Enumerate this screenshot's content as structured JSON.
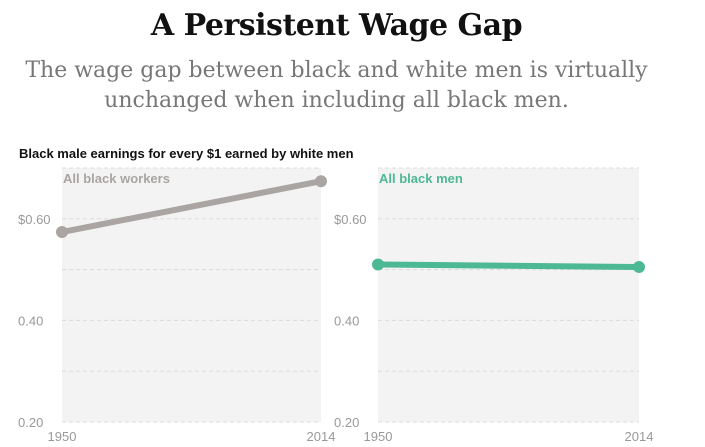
{
  "title": "A Persistent Wage Gap",
  "subtitle_line1": "The wage gap between black and white men is virtually",
  "subtitle_line2": "unchanged when including all black men.",
  "chart_label": "Black male earnings for every $1 earned by white men",
  "colors": {
    "panel1": "#aaa5a2",
    "panel2": "#4db894",
    "panel_bg": "#f3f3f3",
    "grid": "#dcdcdc"
  },
  "chart_data": [
    {
      "type": "line",
      "series": [
        {
          "name": "All black workers",
          "x": [
            1950,
            2014
          ],
          "values": [
            0.574,
            0.674
          ]
        }
      ],
      "ylim": [
        0.2,
        0.7
      ],
      "xlim": [
        1950,
        2014
      ],
      "yticks": [
        0.6,
        0.4,
        0.2
      ],
      "ytick_labels": [
        "$0.60",
        "0.40",
        "0.20"
      ],
      "xtick_labels": [
        "1950",
        "2014"
      ],
      "grid": true
    },
    {
      "type": "line",
      "series": [
        {
          "name": "All black men",
          "x": [
            1950,
            2014
          ],
          "values": [
            0.51,
            0.505
          ]
        }
      ],
      "ylim": [
        0.2,
        0.7
      ],
      "xlim": [
        1950,
        2014
      ],
      "yticks": [
        0.6,
        0.4,
        0.2
      ],
      "ytick_labels": [
        "$0.60",
        "0.40",
        "0.20"
      ],
      "xtick_labels": [
        "1950",
        "2014"
      ],
      "grid": true
    }
  ]
}
